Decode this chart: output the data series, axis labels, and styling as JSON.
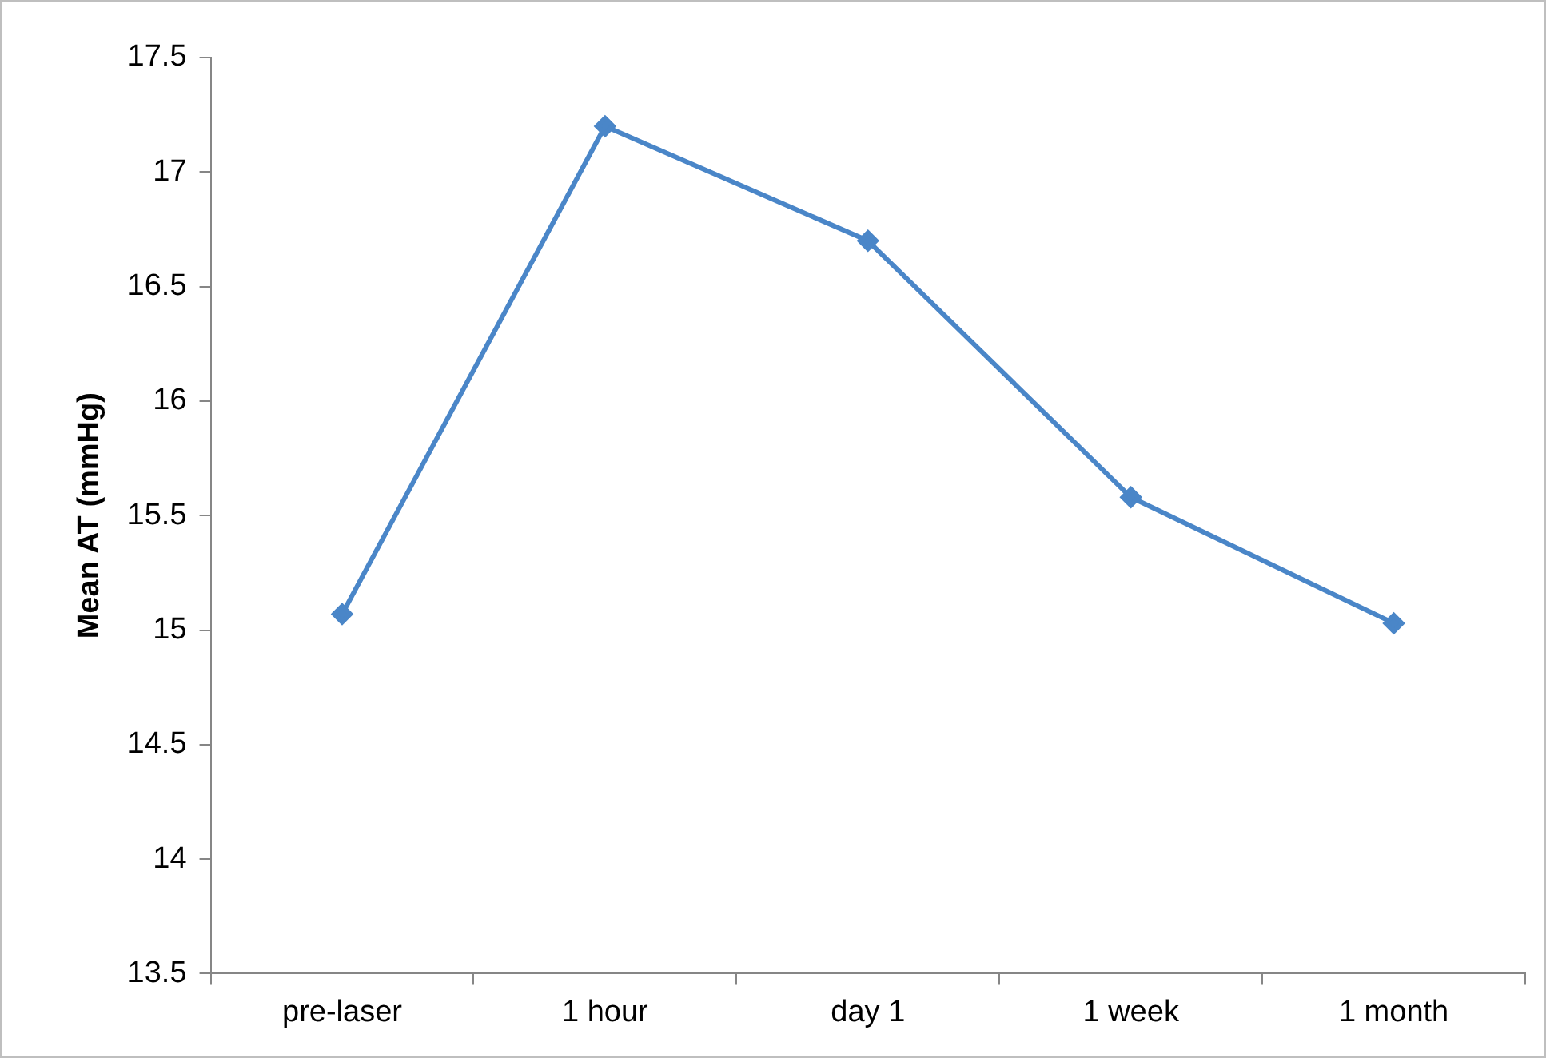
{
  "chart_data": {
    "type": "line",
    "ylabel": "Mean AT (mmHg)",
    "categories": [
      "pre-laser",
      "1 hour",
      "day 1",
      "1 week",
      "1 month"
    ],
    "series": [
      {
        "color": "#4a86c8",
        "values": [
          15.07,
          17.2,
          16.7,
          15.58,
          15.03
        ]
      }
    ],
    "ylim": [
      13.5,
      17.5
    ],
    "yticks": [
      13.5,
      14,
      14.5,
      15,
      15.5,
      16,
      16.5,
      17,
      17.5
    ],
    "grid": false,
    "legend": false,
    "marker": "diamond",
    "line_style": "solid"
  }
}
